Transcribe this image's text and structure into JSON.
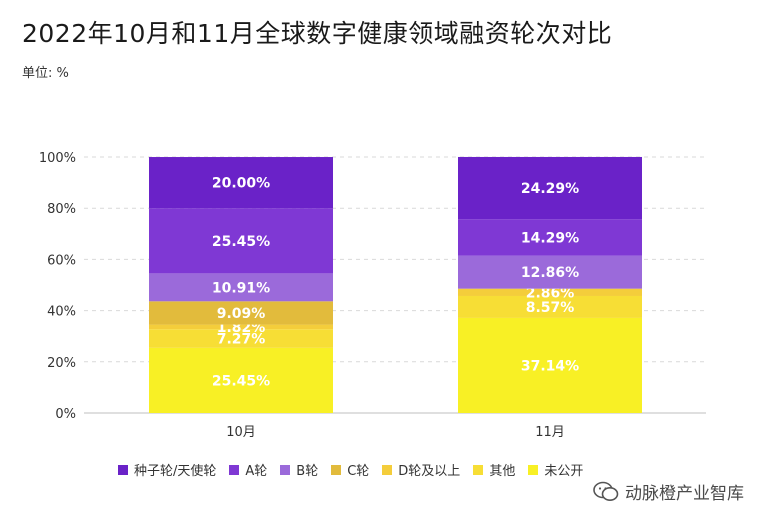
{
  "title": "2022年10月和11月全球数字健康领域融资轮次对比",
  "unit_label": "单位: %",
  "watermark": "动脉橙产业智库",
  "icons": {
    "watermark": "wechat-icon"
  },
  "chart_data": {
    "type": "bar",
    "stacked": true,
    "categories": [
      "10月",
      "11月"
    ],
    "ylim": [
      0,
      100
    ],
    "yticks": [
      0,
      20,
      40,
      60,
      80,
      100
    ],
    "ytick_labels": [
      "0%",
      "20%",
      "40%",
      "60%",
      "80%",
      "100%"
    ],
    "series": [
      {
        "name": "未公开",
        "color": "#f8f025",
        "values": [
          25.45,
          37.14
        ],
        "labels": [
          "25.45%",
          "37.14%"
        ]
      },
      {
        "name": "其他",
        "color": "#f7de35",
        "values": [
          7.27,
          8.57
        ],
        "labels": [
          "7.27%",
          "8.57%"
        ]
      },
      {
        "name": "D轮及以上",
        "color": "#f4cd3b",
        "values": [
          1.82,
          2.86
        ],
        "labels": [
          "1.82%",
          "2.86%"
        ]
      },
      {
        "name": "C轮",
        "color": "#e2bb3c",
        "values": [
          9.09,
          0
        ],
        "labels": [
          "9.09%",
          ""
        ]
      },
      {
        "name": "B轮",
        "color": "#9b6ada",
        "values": [
          10.91,
          12.86
        ],
        "labels": [
          "10.91%",
          "12.86%"
        ]
      },
      {
        "name": "A轮",
        "color": "#7f38d4",
        "values": [
          25.45,
          14.29
        ],
        "labels": [
          "25.45%",
          "14.29%"
        ]
      },
      {
        "name": "种子轮/天使轮",
        "color": "#6a22c8",
        "values": [
          20.0,
          24.29
        ],
        "labels": [
          "20.00%",
          "24.29%"
        ]
      }
    ],
    "legend": [
      {
        "name": "种子轮/天使轮",
        "color": "#6a22c8"
      },
      {
        "name": "A轮",
        "color": "#7f38d4"
      },
      {
        "name": "B轮",
        "color": "#9b6ada"
      },
      {
        "name": "C轮",
        "color": "#e2bb3c"
      },
      {
        "name": "D轮及以上",
        "color": "#f4cd3b"
      },
      {
        "name": "其他",
        "color": "#f7de35"
      },
      {
        "name": "未公开",
        "color": "#f8f025"
      }
    ],
    "legend_position": "bottom",
    "grid": true
  }
}
